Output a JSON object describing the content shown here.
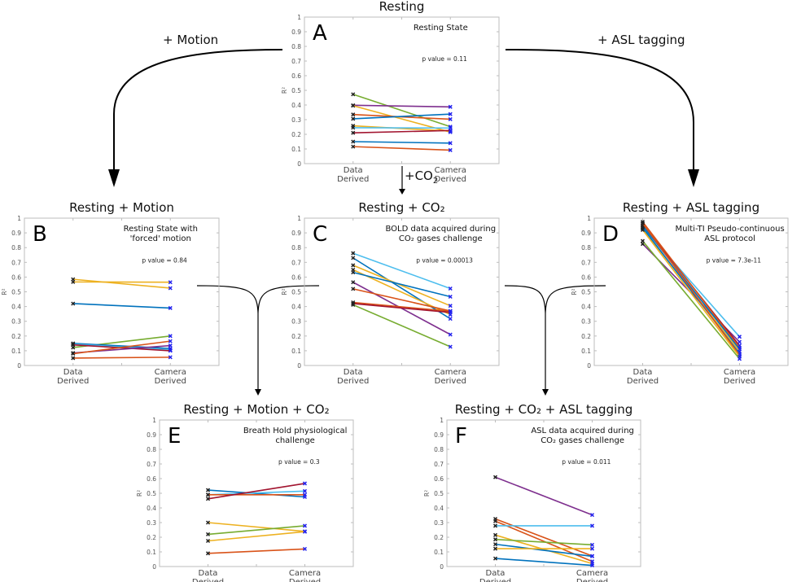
{
  "arrows": {
    "motion": "+ Motion",
    "asl": "+ ASL tagging",
    "co2_prefix": "+CO",
    "co2_sub": "2"
  },
  "chart_data": [
    {
      "id": "A",
      "type": "line",
      "title": "Resting",
      "letter": "A",
      "description": [
        "Resting State"
      ],
      "p_value": "p value = 0.11",
      "ylabel": "R²",
      "categories": [
        "Data Derived",
        "Camera Derived"
      ],
      "ylim": [
        0,
        1
      ],
      "yticks": [
        "0",
        "0.1",
        "0.2",
        "0.3",
        "0.4",
        "0.5",
        "0.6",
        "0.7",
        "0.8",
        "0.9",
        "1"
      ],
      "series": [
        {
          "color": "#77ac30",
          "values": [
            0.473,
            0.252
          ]
        },
        {
          "color": "#7e2f8e",
          "values": [
            0.398,
            0.387
          ]
        },
        {
          "color": "#edb120",
          "values": [
            0.395,
            0.215
          ]
        },
        {
          "color": "#d95319",
          "values": [
            0.335,
            0.303
          ]
        },
        {
          "color": "#0072bd",
          "values": [
            0.306,
            0.338
          ]
        },
        {
          "color": "#edb120",
          "values": [
            0.258,
            0.222
          ]
        },
        {
          "color": "#4dbeee",
          "values": [
            0.245,
            0.243
          ]
        },
        {
          "color": "#a2142f",
          "values": [
            0.21,
            0.226
          ]
        },
        {
          "color": "#0072bd",
          "values": [
            0.15,
            0.14
          ]
        },
        {
          "color": "#d95319",
          "values": [
            0.116,
            0.092
          ]
        }
      ]
    },
    {
      "id": "B",
      "type": "line",
      "title": "Resting + Motion",
      "letter": "B",
      "description": [
        "Resting State with",
        "'forced' motion"
      ],
      "p_value": "p value = 0.84",
      "ylabel": "R²",
      "categories": [
        "Data Derived",
        "Camera Derived"
      ],
      "ylim": [
        0,
        1
      ],
      "yticks": [
        "0",
        "0.1",
        "0.2",
        "0.3",
        "0.4",
        "0.5",
        "0.6",
        "0.7",
        "0.8",
        "0.9",
        "1"
      ],
      "series": [
        {
          "color": "#edb120",
          "values": [
            0.585,
            0.525
          ]
        },
        {
          "color": "#edb120",
          "values": [
            0.567,
            0.565
          ]
        },
        {
          "color": "#0072bd",
          "values": [
            0.42,
            0.39
          ]
        },
        {
          "color": "#77ac30",
          "values": [
            0.122,
            0.2
          ]
        },
        {
          "color": "#0072bd",
          "values": [
            0.15,
            0.115
          ]
        },
        {
          "color": "#4dbeee",
          "values": [
            0.145,
            0.105
          ]
        },
        {
          "color": "#a2142f",
          "values": [
            0.14,
            0.1
          ]
        },
        {
          "color": "#7e2f8e",
          "values": [
            0.085,
            0.135
          ]
        },
        {
          "color": "#d95319",
          "values": [
            0.08,
            0.165
          ]
        },
        {
          "color": "#d95319",
          "values": [
            0.05,
            0.056
          ]
        }
      ]
    },
    {
      "id": "C",
      "type": "line",
      "title": "Resting + CO₂",
      "letter": "C",
      "description": [
        "BOLD data acquired during",
        "CO₂ gases challenge"
      ],
      "p_value": "p value = 0.00013",
      "ylabel": "R²",
      "categories": [
        "Data Derived",
        "Camera Derived"
      ],
      "ylim": [
        0,
        1
      ],
      "yticks": [
        "0",
        "0.1",
        "0.2",
        "0.3",
        "0.4",
        "0.5",
        "0.6",
        "0.7",
        "0.8",
        "0.9",
        "1"
      ],
      "series": [
        {
          "color": "#4dbeee",
          "values": [
            0.762,
            0.522
          ]
        },
        {
          "color": "#0072bd",
          "values": [
            0.73,
            0.317
          ]
        },
        {
          "color": "#edb120",
          "values": [
            0.68,
            0.405
          ]
        },
        {
          "color": "#edb120",
          "values": [
            0.65,
            0.345
          ]
        },
        {
          "color": "#0072bd",
          "values": [
            0.632,
            0.467
          ]
        },
        {
          "color": "#7e2f8e",
          "values": [
            0.565,
            0.21
          ]
        },
        {
          "color": "#d95319",
          "values": [
            0.52,
            0.37
          ]
        },
        {
          "color": "#d95319",
          "values": [
            0.428,
            0.368
          ]
        },
        {
          "color": "#a2142f",
          "values": [
            0.42,
            0.36
          ]
        },
        {
          "color": "#77ac30",
          "values": [
            0.412,
            0.127
          ]
        }
      ]
    },
    {
      "id": "D",
      "type": "line",
      "title": "Resting + ASL tagging",
      "letter": "D",
      "description": [
        "Multi-TI Pseudo-continuous",
        "ASL protocol"
      ],
      "p_value": "p value = 7.3e-11",
      "ylabel": "R²",
      "categories": [
        "Data Derived",
        "Camera Derived"
      ],
      "ylim": [
        0,
        1
      ],
      "yticks": [
        "0",
        "0.1",
        "0.2",
        "0.3",
        "0.4",
        "0.5",
        "0.6",
        "0.7",
        "0.8",
        "0.9",
        "1"
      ],
      "series": [
        {
          "color": "#4dbeee",
          "values": [
            0.94,
            0.195
          ]
        },
        {
          "color": "#7e2f8e",
          "values": [
            0.825,
            0.16
          ]
        },
        {
          "color": "#a2142f",
          "values": [
            0.96,
            0.135
          ]
        },
        {
          "color": "#d95319",
          "values": [
            0.975,
            0.12
          ]
        },
        {
          "color": "#0072bd",
          "values": [
            0.95,
            0.11
          ]
        },
        {
          "color": "#edb120",
          "values": [
            0.93,
            0.095
          ]
        },
        {
          "color": "#0072bd",
          "values": [
            0.935,
            0.08
          ]
        },
        {
          "color": "#d95319",
          "values": [
            0.965,
            0.07
          ]
        },
        {
          "color": "#edb120",
          "values": [
            0.92,
            0.06
          ]
        },
        {
          "color": "#77ac30",
          "values": [
            0.845,
            0.045
          ]
        }
      ]
    },
    {
      "id": "E",
      "type": "line",
      "title": "Resting + Motion + CO₂",
      "letter": "E",
      "description": [
        "Breath Hold physiological",
        "challenge"
      ],
      "p_value": "p value = 0.3",
      "ylabel": "R²",
      "categories": [
        "Data Derived",
        "Camera Derived"
      ],
      "ylim": [
        0,
        1
      ],
      "yticks": [
        "0",
        "0.1",
        "0.2",
        "0.3",
        "0.4",
        "0.5",
        "0.6",
        "0.7",
        "0.8",
        "0.9",
        "1"
      ],
      "series": [
        {
          "color": "#0072bd",
          "values": [
            0.522,
            0.475
          ]
        },
        {
          "color": "#4dbeee",
          "values": [
            0.49,
            0.515
          ]
        },
        {
          "color": "#d95319",
          "values": [
            0.49,
            0.49
          ]
        },
        {
          "color": "#a2142f",
          "values": [
            0.462,
            0.567
          ]
        },
        {
          "color": "#edb120",
          "values": [
            0.3,
            0.24
          ]
        },
        {
          "color": "#77ac30",
          "values": [
            0.22,
            0.278
          ]
        },
        {
          "color": "#edb120",
          "values": [
            0.175,
            0.238
          ]
        },
        {
          "color": "#d95319",
          "values": [
            0.09,
            0.12
          ]
        }
      ]
    },
    {
      "id": "F",
      "type": "line",
      "title": "Resting + CO₂ + ASL tagging",
      "letter": "F",
      "description": [
        "ASL data acquired during",
        "CO₂ gases challenge"
      ],
      "p_value": "p value = 0.011",
      "ylabel": "R²",
      "categories": [
        "Data Derived",
        "Camera Derived"
      ],
      "ylim": [
        0,
        1
      ],
      "yticks": [
        "0",
        "0.1",
        "0.2",
        "0.3",
        "0.4",
        "0.5",
        "0.6",
        "0.7",
        "0.8",
        "0.9",
        "1"
      ],
      "series": [
        {
          "color": "#7e2f8e",
          "values": [
            0.61,
            0.352
          ]
        },
        {
          "color": "#d95319",
          "values": [
            0.325,
            0.072
          ]
        },
        {
          "color": "#d95319",
          "values": [
            0.31,
            0.035
          ]
        },
        {
          "color": "#4dbeee",
          "values": [
            0.278,
            0.278
          ]
        },
        {
          "color": "#edb120",
          "values": [
            0.215,
            0.02
          ]
        },
        {
          "color": "#77ac30",
          "values": [
            0.185,
            0.148
          ]
        },
        {
          "color": "#0072bd",
          "values": [
            0.152,
            0.07
          ]
        },
        {
          "color": "#edb120",
          "values": [
            0.122,
            0.122
          ]
        },
        {
          "color": "#0072bd",
          "values": [
            0.055,
            0.008
          ]
        }
      ]
    }
  ]
}
